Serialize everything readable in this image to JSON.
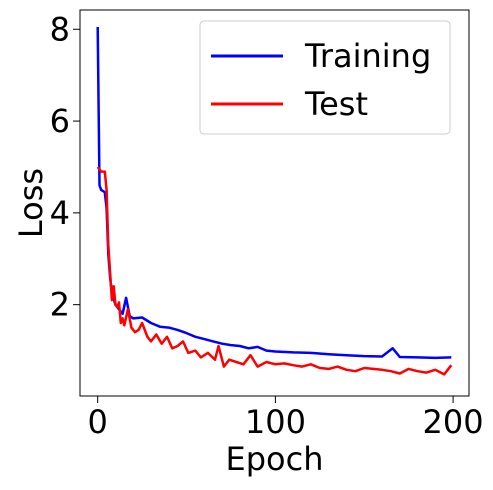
{
  "chart_data": {
    "type": "line",
    "xlabel": "Epoch",
    "ylabel": "Loss",
    "xlim": [
      -9.95,
      208.95
    ],
    "ylim": [
      0.01,
      8.42
    ],
    "xticks": [
      0,
      100,
      200
    ],
    "yticks": [
      2,
      4,
      6,
      8
    ],
    "grid": false,
    "legend_position": "top-right",
    "series": [
      {
        "name": "Training",
        "color": "#0000ff",
        "x": [
          0,
          1,
          2,
          4,
          5,
          6,
          7,
          8,
          10,
          12,
          14,
          16,
          18,
          20,
          25,
          30,
          35,
          40,
          45,
          50,
          55,
          60,
          65,
          70,
          75,
          80,
          85,
          90,
          95,
          100,
          110,
          120,
          130,
          140,
          150,
          160,
          166,
          170,
          180,
          190,
          199
        ],
        "y": [
          8.05,
          4.6,
          4.5,
          4.45,
          4.1,
          3.1,
          2.6,
          2.25,
          2.0,
          1.9,
          1.8,
          2.15,
          1.75,
          1.7,
          1.72,
          1.6,
          1.52,
          1.5,
          1.45,
          1.38,
          1.3,
          1.25,
          1.2,
          1.15,
          1.12,
          1.1,
          1.05,
          1.08,
          1.0,
          0.98,
          0.96,
          0.95,
          0.92,
          0.9,
          0.88,
          0.87,
          1.05,
          0.86,
          0.85,
          0.84,
          0.85
        ]
      },
      {
        "name": "Test",
        "color": "#ff0000",
        "x": [
          0,
          2,
          4,
          5,
          6,
          7,
          8,
          9,
          10,
          11,
          12,
          13,
          14,
          15,
          17,
          19,
          21,
          23,
          25,
          28,
          30,
          33,
          36,
          39,
          42,
          45,
          48,
          51,
          55,
          58,
          62,
          66,
          68,
          71,
          74,
          78,
          82,
          86,
          90,
          95,
          100,
          105,
          110,
          115,
          120,
          125,
          130,
          135,
          140,
          145,
          150,
          155,
          160,
          165,
          170,
          175,
          180,
          185,
          190,
          195,
          199
        ],
        "y": [
          5.0,
          4.9,
          4.9,
          4.5,
          3.3,
          2.7,
          2.1,
          2.4,
          2.0,
          1.95,
          2.05,
          1.6,
          1.7,
          1.55,
          1.9,
          1.5,
          1.4,
          1.45,
          1.6,
          1.3,
          1.2,
          1.35,
          1.15,
          1.3,
          1.05,
          1.1,
          1.2,
          0.95,
          1.0,
          0.85,
          0.95,
          0.8,
          1.1,
          0.65,
          0.8,
          0.75,
          0.7,
          0.9,
          0.65,
          0.75,
          0.7,
          0.72,
          0.68,
          0.65,
          0.7,
          0.62,
          0.6,
          0.65,
          0.58,
          0.55,
          0.62,
          0.6,
          0.58,
          0.55,
          0.5,
          0.6,
          0.55,
          0.52,
          0.58,
          0.48,
          0.68
        ]
      }
    ]
  }
}
